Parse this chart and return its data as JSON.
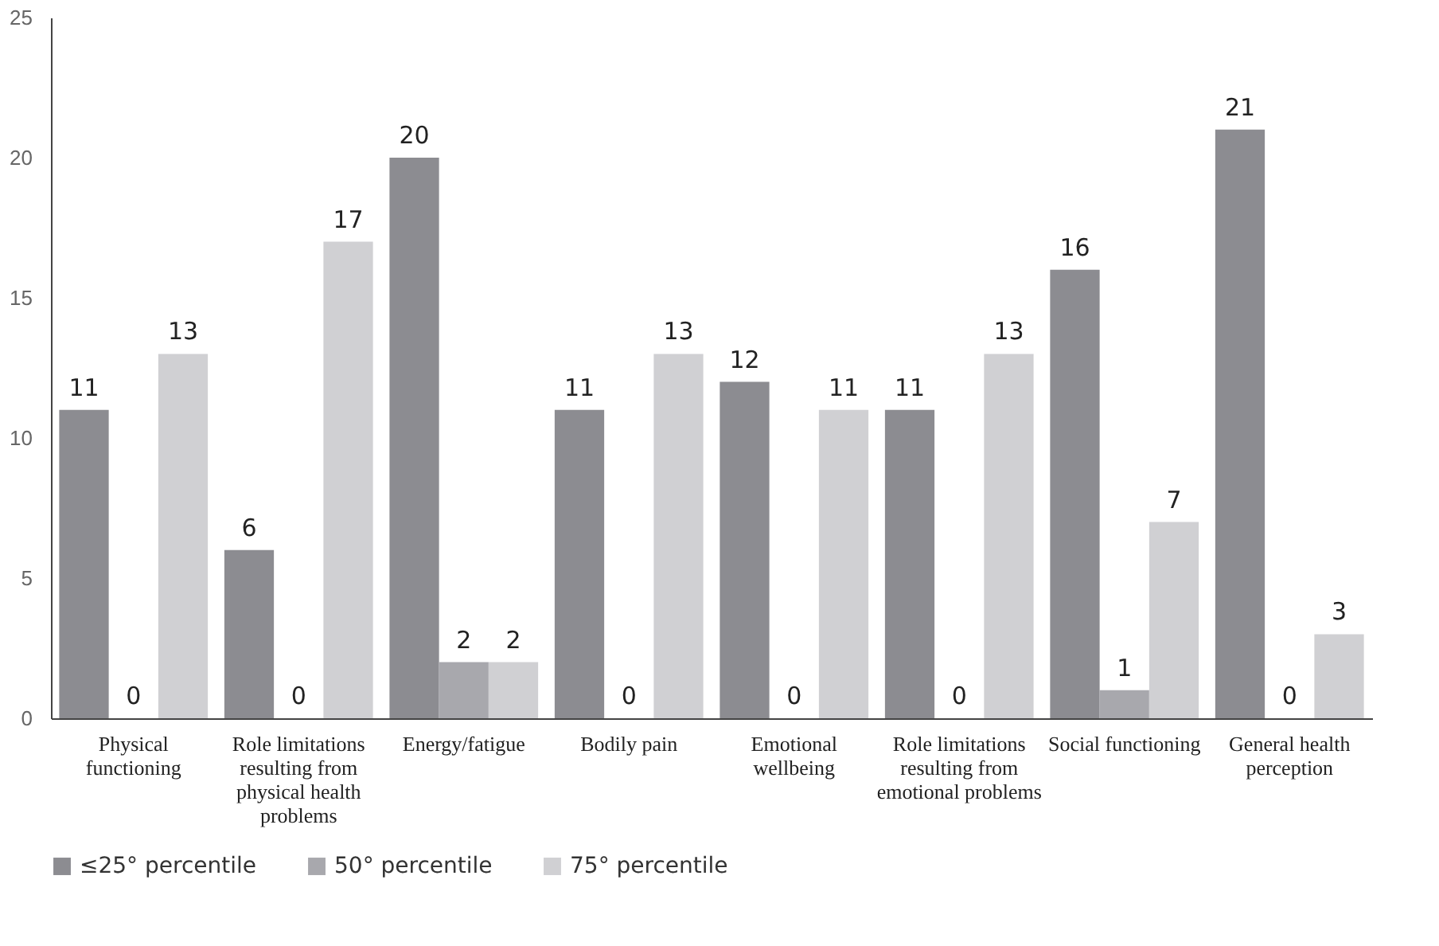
{
  "chart_data": {
    "type": "bar",
    "categories": [
      "Physical functioning",
      "Role limitations resulting from physical health problems",
      "Energy/fatigue",
      "Bodily pain",
      "Emotional wellbeing",
      "Role limitations resulting from emotional problems",
      "Social functioning",
      "General health perception"
    ],
    "series": [
      {
        "name": "≤25° percentile",
        "color": "#8c8c91",
        "values": [
          11,
          6,
          20,
          11,
          12,
          11,
          16,
          21
        ]
      },
      {
        "name": "50° percentile",
        "color": "#a8a8ad",
        "values": [
          0,
          0,
          2,
          0,
          0,
          0,
          1,
          0
        ]
      },
      {
        "name": "75° percentile",
        "color": "#d0d0d3",
        "values": [
          13,
          17,
          2,
          13,
          11,
          13,
          7,
          3
        ]
      }
    ],
    "ylim": [
      0,
      25
    ],
    "yticks": [
      0,
      5,
      10,
      15,
      20,
      25
    ],
    "grid": false,
    "legend": "bottom",
    "data_labels": true
  }
}
